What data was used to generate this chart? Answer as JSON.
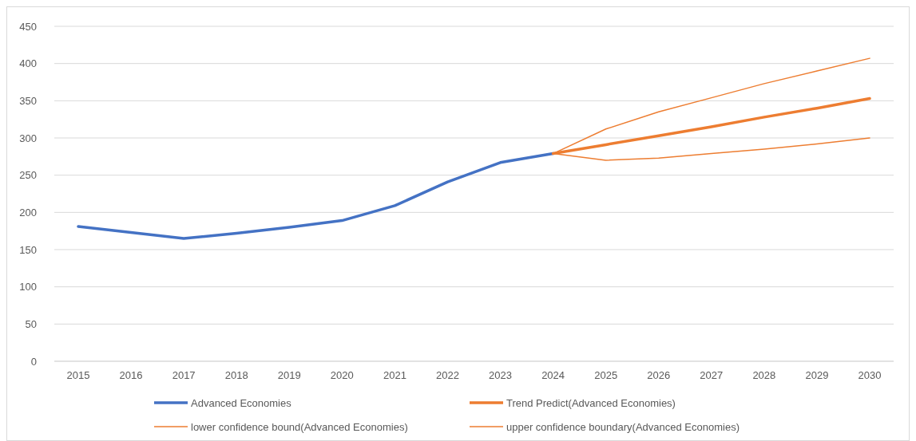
{
  "chart_data": {
    "type": "line",
    "categories": [
      "2015",
      "2016",
      "2017",
      "2018",
      "2019",
      "2020",
      "2021",
      "2022",
      "2023",
      "2024",
      "2025",
      "2026",
      "2027",
      "2028",
      "2029",
      "2030"
    ],
    "ylim": [
      0,
      450
    ],
    "yticks": [
      0,
      50,
      100,
      150,
      200,
      250,
      300,
      350,
      400,
      450
    ],
    "grid": "y",
    "legend": "bottom",
    "marker": "none",
    "line_style": "solid",
    "series": [
      {
        "name": "Advanced Economies",
        "color": "#4472c4",
        "values": [
          181,
          173,
          165,
          172,
          180,
          189,
          209,
          241,
          267,
          279,
          null,
          null,
          null,
          null,
          null,
          null
        ]
      },
      {
        "name": "Trend Predict(Advanced Economies)",
        "color": "#ed7d31",
        "values": [
          null,
          null,
          null,
          null,
          null,
          null,
          null,
          null,
          null,
          279,
          291,
          303,
          315,
          328,
          340,
          353
        ]
      },
      {
        "name": "lower confidence bound(Advanced Economies)",
        "color": "#ed7d31",
        "values": [
          null,
          null,
          null,
          null,
          null,
          null,
          null,
          null,
          null,
          279,
          270,
          273,
          279,
          285,
          292,
          300
        ]
      },
      {
        "name": "upper confidence boundary(Advanced Economies)",
        "color": "#ed7d31",
        "values": [
          null,
          null,
          null,
          null,
          null,
          null,
          null,
          null,
          null,
          279,
          312,
          335,
          354,
          373,
          390,
          407
        ]
      }
    ]
  }
}
